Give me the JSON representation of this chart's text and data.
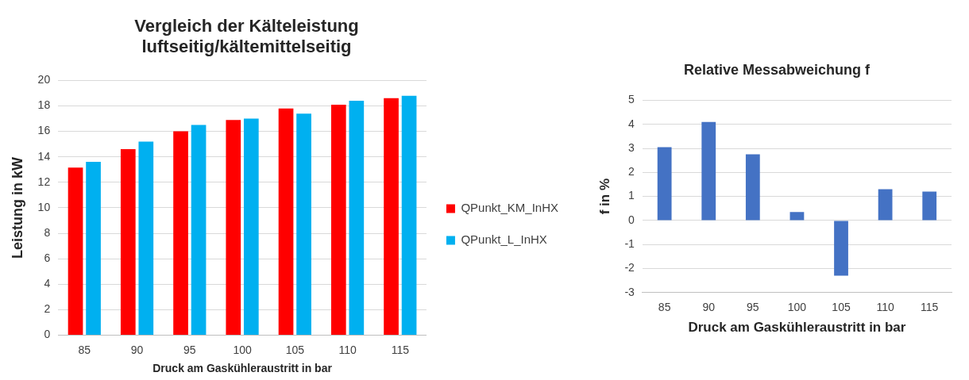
{
  "chart_data": [
    {
      "type": "bar",
      "title": "Vergleich der Kälteleistung luftseitig/kältemittelseitig",
      "xlabel": "Druck am Gaskühleraustritt in bar",
      "ylabel": "Leistung in kW",
      "categories": [
        "85",
        "90",
        "95",
        "100",
        "105",
        "110",
        "115"
      ],
      "series": [
        {
          "name": "QPunkt_KM_InHX",
          "color": "#ff0000",
          "values": [
            13.15,
            14.6,
            16.0,
            16.9,
            17.8,
            18.1,
            18.6
          ]
        },
        {
          "name": "QPunkt_L_InHX",
          "color": "#00b0f0",
          "values": [
            13.6,
            15.2,
            16.5,
            17.0,
            17.4,
            18.4,
            18.8
          ]
        }
      ],
      "ylim": [
        0,
        20
      ],
      "yticks": [
        0,
        2,
        4,
        6,
        8,
        10,
        12,
        14,
        16,
        18,
        20
      ],
      "grid": "y",
      "legend": "right"
    },
    {
      "type": "bar",
      "title": "Relative Messabweichung f",
      "xlabel": "Druck am Gaskühleraustritt in bar",
      "ylabel": "f in %",
      "categories": [
        "85",
        "90",
        "95",
        "100",
        "105",
        "110",
        "115"
      ],
      "series": [
        {
          "color": "#4472c4",
          "values": [
            3.05,
            4.1,
            2.75,
            0.35,
            -2.3,
            1.3,
            1.2
          ]
        }
      ],
      "ylim": [
        -3,
        5
      ],
      "yticks": [
        -3,
        -2,
        -1,
        0,
        1,
        2,
        3,
        4,
        5
      ],
      "grid": "y"
    }
  ]
}
